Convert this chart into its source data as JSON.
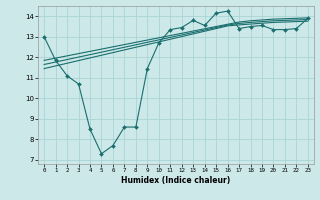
{
  "xlabel": "Humidex (Indice chaleur)",
  "bg_color": "#cce8e8",
  "grid_color": "#aad4d4",
  "line_color": "#1a6e6e",
  "xlim": [
    -0.5,
    23.5
  ],
  "ylim": [
    6.8,
    14.5
  ],
  "xticks": [
    0,
    1,
    2,
    3,
    4,
    5,
    6,
    7,
    8,
    9,
    10,
    11,
    12,
    13,
    14,
    15,
    16,
    17,
    18,
    19,
    20,
    21,
    22,
    23
  ],
  "yticks": [
    7,
    8,
    9,
    10,
    11,
    12,
    13,
    14
  ],
  "line1_x": [
    0,
    1,
    2,
    3,
    4,
    5,
    6,
    7,
    8,
    9,
    10,
    11,
    12,
    13,
    14,
    15,
    16,
    17,
    18,
    19,
    20,
    21,
    22,
    23
  ],
  "line1_y": [
    13.0,
    11.85,
    11.1,
    10.7,
    8.5,
    7.3,
    7.7,
    8.6,
    8.6,
    11.45,
    12.7,
    13.35,
    13.45,
    13.8,
    13.55,
    14.15,
    14.25,
    13.4,
    13.5,
    13.55,
    13.35,
    13.35,
    13.4,
    13.9
  ],
  "line2_x": [
    0,
    1,
    2,
    3,
    4,
    5,
    6,
    7,
    8,
    9,
    10,
    11,
    12,
    13,
    14,
    15,
    16,
    17,
    18,
    19,
    20,
    21,
    22,
    23
  ],
  "line2_y": [
    11.85,
    11.96,
    12.07,
    12.18,
    12.29,
    12.4,
    12.51,
    12.62,
    12.73,
    12.84,
    12.95,
    13.06,
    13.17,
    13.28,
    13.39,
    13.5,
    13.61,
    13.72,
    13.78,
    13.82,
    13.86,
    13.88,
    13.9,
    13.92
  ],
  "line3_x": [
    0,
    1,
    2,
    3,
    4,
    5,
    6,
    7,
    8,
    9,
    10,
    11,
    12,
    13,
    14,
    15,
    16,
    17,
    18,
    19,
    20,
    21,
    22,
    23
  ],
  "line3_y": [
    11.65,
    11.77,
    11.89,
    12.01,
    12.13,
    12.25,
    12.37,
    12.49,
    12.61,
    12.73,
    12.85,
    12.97,
    13.09,
    13.21,
    13.33,
    13.45,
    13.57,
    13.65,
    13.7,
    13.74,
    13.78,
    13.8,
    13.82,
    13.84
  ],
  "line4_x": [
    0,
    1,
    2,
    3,
    4,
    5,
    6,
    7,
    8,
    9,
    10,
    11,
    12,
    13,
    14,
    15,
    16,
    17,
    18,
    19,
    20,
    21,
    22,
    23
  ],
  "line4_y": [
    11.45,
    11.58,
    11.71,
    11.84,
    11.97,
    12.1,
    12.23,
    12.36,
    12.49,
    12.62,
    12.75,
    12.88,
    13.01,
    13.14,
    13.27,
    13.4,
    13.53,
    13.58,
    13.62,
    13.66,
    13.7,
    13.72,
    13.74,
    13.76
  ]
}
